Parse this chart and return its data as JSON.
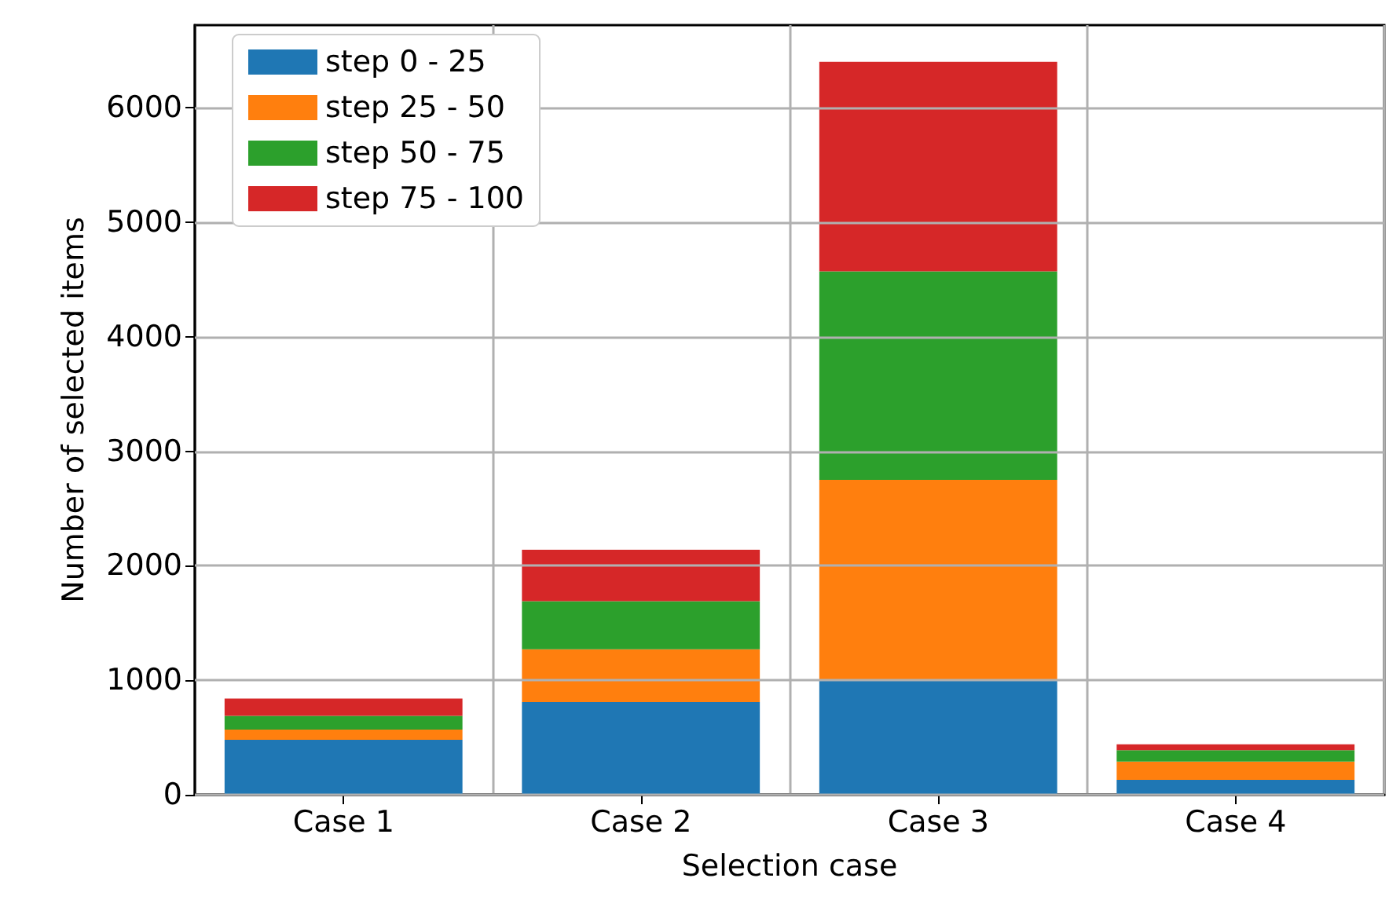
{
  "chart_data": {
    "type": "bar",
    "stacked": true,
    "xlabel": "Selection case",
    "ylabel": "Number of selected items",
    "categories": [
      "Case 1",
      "Case 2",
      "Case 3",
      "Case 4"
    ],
    "series": [
      {
        "name": "step 0 - 25",
        "color": "#1f77b4",
        "values": [
          480,
          810,
          1000,
          130
        ]
      },
      {
        "name": "step 25 - 50",
        "color": "#ff7f0e",
        "values": [
          90,
          460,
          1750,
          160
        ]
      },
      {
        "name": "step 50 - 75",
        "color": "#2ca02c",
        "values": [
          120,
          420,
          1820,
          100
        ]
      },
      {
        "name": "step 75 - 100",
        "color": "#d62728",
        "values": [
          150,
          450,
          1830,
          50
        ]
      }
    ],
    "ylim": [
      0,
      6720
    ],
    "yticks": [
      0,
      1000,
      2000,
      3000,
      4000,
      5000,
      6000
    ],
    "grid": true,
    "legend": "top left"
  }
}
